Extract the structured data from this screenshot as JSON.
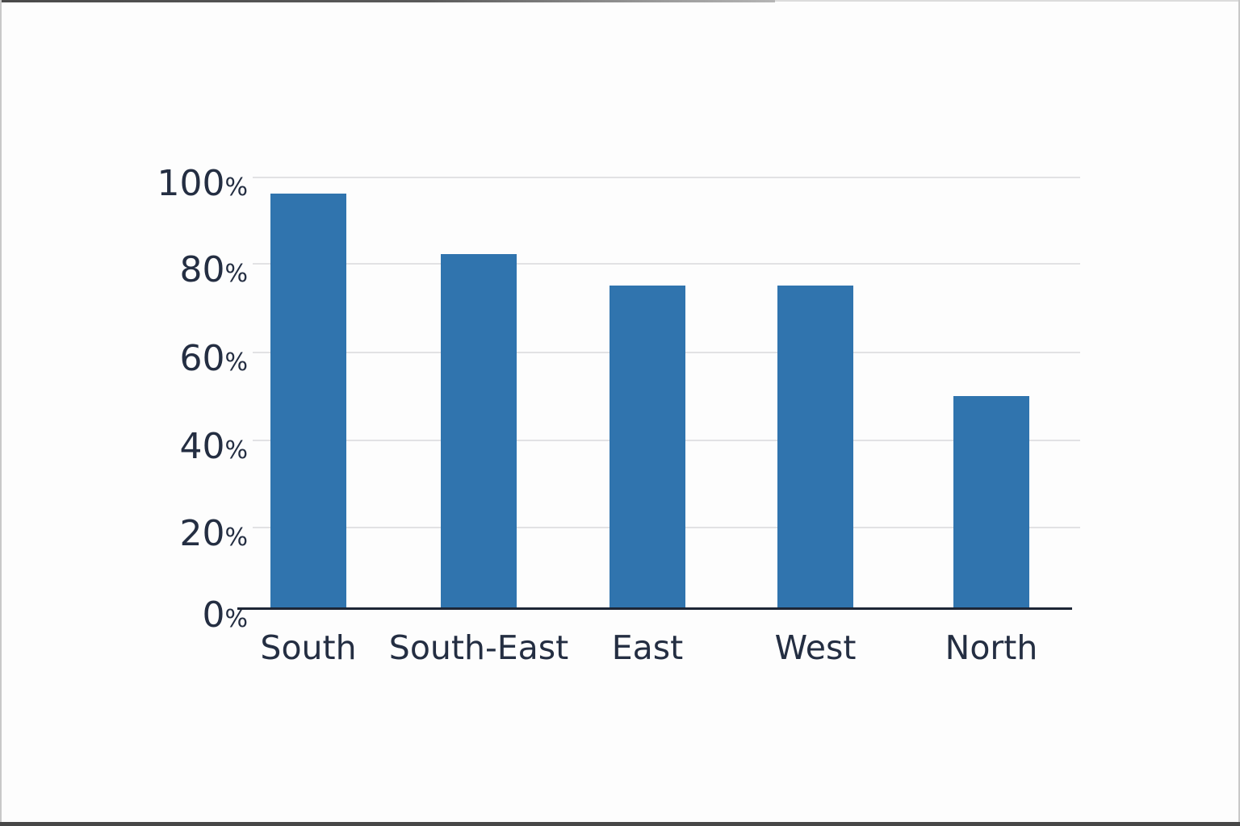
{
  "chart_data": {
    "type": "bar",
    "title": "",
    "categories": [
      "South",
      "South-East",
      "East",
      "West",
      "North"
    ],
    "values": [
      96,
      82,
      75,
      75,
      50
    ],
    "yticks": [
      0,
      20,
      40,
      60,
      80,
      100
    ],
    "ytick_suffix": "%",
    "ylim": [
      0,
      100
    ],
    "grid": true,
    "legend": false,
    "colors": {
      "bar": "#3074ae",
      "text": "#242e42",
      "gridline": "#e2e2e4",
      "axis": "#1d2636"
    }
  }
}
